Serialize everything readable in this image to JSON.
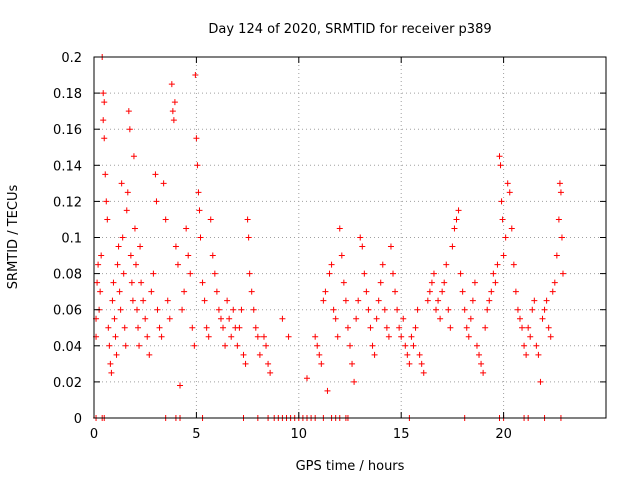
{
  "chart_data": {
    "type": "scatter",
    "title": "Day 124 of 2020, SRMTID for receiver p389",
    "xlabel": "GPS time / hours",
    "ylabel": "SRMTID / TECUs",
    "xlim": [
      0,
      25
    ],
    "ylim": [
      0,
      0.2
    ],
    "xticks": [
      0,
      5,
      10,
      15,
      20
    ],
    "yticks": [
      0,
      0.02,
      0.04,
      0.06,
      0.08,
      0.1,
      0.12,
      0.14,
      0.16,
      0.18,
      0.2
    ],
    "xtick_labels": [
      "0",
      "5",
      "10",
      "15",
      "20"
    ],
    "ytick_labels": [
      "0",
      "0.02",
      "0.04",
      "0.06",
      "0.08",
      "0.1",
      "0.12",
      "0.14",
      "0.16",
      "0.18",
      "0.2"
    ],
    "grid": true,
    "marker": "+",
    "color": "#ff0000",
    "series": [
      {
        "name": "SRMTID",
        "points": [
          [
            0.1,
            0.045
          ],
          [
            0.1,
            0.055
          ],
          [
            0.15,
            0.075
          ],
          [
            0.2,
            0.085
          ],
          [
            0.25,
            0.06
          ],
          [
            0.3,
            0.07
          ],
          [
            0.35,
            0.09
          ],
          [
            0.4,
            0.2
          ],
          [
            0.45,
            0.18
          ],
          [
            0.45,
            0.165
          ],
          [
            0.5,
            0.155
          ],
          [
            0.5,
            0.175
          ],
          [
            0.55,
            0.135
          ],
          [
            0.6,
            0.12
          ],
          [
            0.65,
            0.11
          ],
          [
            0.7,
            0.05
          ],
          [
            0.75,
            0.04
          ],
          [
            0.8,
            0.03
          ],
          [
            0.85,
            0.025
          ],
          [
            0.9,
            0.065
          ],
          [
            0.95,
            0.075
          ],
          [
            1.0,
            0.055
          ],
          [
            1.05,
            0.045
          ],
          [
            1.1,
            0.035
          ],
          [
            1.15,
            0.085
          ],
          [
            1.2,
            0.095
          ],
          [
            1.25,
            0.07
          ],
          [
            1.3,
            0.06
          ],
          [
            1.35,
            0.13
          ],
          [
            1.4,
            0.1
          ],
          [
            1.45,
            0.08
          ],
          [
            1.5,
            0.05
          ],
          [
            1.55,
            0.04
          ],
          [
            1.6,
            0.115
          ],
          [
            1.65,
            0.125
          ],
          [
            1.7,
            0.17
          ],
          [
            1.75,
            0.16
          ],
          [
            1.8,
            0.09
          ],
          [
            1.85,
            0.075
          ],
          [
            1.9,
            0.065
          ],
          [
            1.95,
            0.145
          ],
          [
            2.0,
            0.105
          ],
          [
            2.05,
            0.085
          ],
          [
            2.1,
            0.06
          ],
          [
            2.15,
            0.05
          ],
          [
            2.2,
            0.04
          ],
          [
            2.25,
            0.095
          ],
          [
            2.3,
            0.075
          ],
          [
            2.4,
            0.065
          ],
          [
            2.5,
            0.055
          ],
          [
            2.6,
            0.045
          ],
          [
            2.7,
            0.035
          ],
          [
            2.8,
            0.07
          ],
          [
            2.9,
            0.08
          ],
          [
            3.0,
            0.135
          ],
          [
            3.05,
            0.12
          ],
          [
            3.1,
            0.06
          ],
          [
            3.2,
            0.05
          ],
          [
            3.3,
            0.045
          ],
          [
            3.4,
            0.13
          ],
          [
            3.5,
            0.11
          ],
          [
            3.6,
            0.065
          ],
          [
            3.7,
            0.055
          ],
          [
            3.8,
            0.185
          ],
          [
            3.85,
            0.17
          ],
          [
            3.9,
            0.165
          ],
          [
            3.95,
            0.175
          ],
          [
            4.0,
            0.095
          ],
          [
            4.1,
            0.085
          ],
          [
            4.2,
            0.018
          ],
          [
            4.3,
            0.06
          ],
          [
            4.4,
            0.07
          ],
          [
            4.5,
            0.105
          ],
          [
            4.6,
            0.09
          ],
          [
            4.7,
            0.08
          ],
          [
            4.8,
            0.05
          ],
          [
            4.9,
            0.04
          ],
          [
            4.95,
            0.19
          ],
          [
            5.0,
            0.155
          ],
          [
            5.05,
            0.14
          ],
          [
            5.1,
            0.125
          ],
          [
            5.15,
            0.115
          ],
          [
            5.2,
            0.1
          ],
          [
            5.3,
            0.075
          ],
          [
            5.4,
            0.065
          ],
          [
            5.5,
            0.05
          ],
          [
            5.6,
            0.045
          ],
          [
            5.7,
            0.11
          ],
          [
            5.8,
            0.09
          ],
          [
            5.9,
            0.08
          ],
          [
            6.0,
            0.07
          ],
          [
            6.1,
            0.06
          ],
          [
            6.2,
            0.055
          ],
          [
            6.3,
            0.05
          ],
          [
            6.4,
            0.04
          ],
          [
            6.5,
            0.065
          ],
          [
            6.6,
            0.055
          ],
          [
            6.7,
            0.045
          ],
          [
            6.8,
            0.06
          ],
          [
            6.9,
            0.05
          ],
          [
            7.0,
            0.04
          ],
          [
            7.1,
            0.05
          ],
          [
            7.2,
            0.06
          ],
          [
            7.3,
            0.035
          ],
          [
            7.4,
            0.03
          ],
          [
            7.5,
            0.11
          ],
          [
            7.55,
            0.1
          ],
          [
            7.6,
            0.08
          ],
          [
            7.7,
            0.07
          ],
          [
            7.8,
            0.06
          ],
          [
            7.9,
            0.05
          ],
          [
            8.0,
            0.045
          ],
          [
            8.1,
            0.035
          ],
          [
            8.3,
            0.045
          ],
          [
            8.4,
            0.04
          ],
          [
            8.5,
            0.03
          ],
          [
            8.6,
            0.025
          ],
          [
            9.2,
            0.055
          ],
          [
            9.5,
            0.045
          ],
          [
            10.4,
            0.022
          ],
          [
            10.8,
            0.045
          ],
          [
            10.9,
            0.04
          ],
          [
            11.0,
            0.035
          ],
          [
            11.1,
            0.03
          ],
          [
            11.2,
            0.065
          ],
          [
            11.3,
            0.07
          ],
          [
            11.4,
            0.015
          ],
          [
            11.5,
            0.08
          ],
          [
            11.6,
            0.085
          ],
          [
            11.7,
            0.06
          ],
          [
            11.8,
            0.055
          ],
          [
            11.9,
            0.045
          ],
          [
            12.0,
            0.105
          ],
          [
            12.1,
            0.09
          ],
          [
            12.2,
            0.075
          ],
          [
            12.3,
            0.065
          ],
          [
            12.4,
            0.05
          ],
          [
            12.5,
            0.04
          ],
          [
            12.6,
            0.03
          ],
          [
            12.7,
            0.02
          ],
          [
            12.8,
            0.055
          ],
          [
            12.9,
            0.065
          ],
          [
            13.0,
            0.1
          ],
          [
            13.1,
            0.095
          ],
          [
            13.2,
            0.08
          ],
          [
            13.3,
            0.07
          ],
          [
            13.4,
            0.06
          ],
          [
            13.5,
            0.05
          ],
          [
            13.6,
            0.04
          ],
          [
            13.7,
            0.035
          ],
          [
            13.8,
            0.055
          ],
          [
            13.9,
            0.065
          ],
          [
            14.0,
            0.075
          ],
          [
            14.1,
            0.085
          ],
          [
            14.2,
            0.06
          ],
          [
            14.3,
            0.05
          ],
          [
            14.4,
            0.045
          ],
          [
            14.5,
            0.095
          ],
          [
            14.6,
            0.08
          ],
          [
            14.7,
            0.07
          ],
          [
            14.8,
            0.06
          ],
          [
            14.9,
            0.05
          ],
          [
            15.0,
            0.045
          ],
          [
            15.1,
            0.055
          ],
          [
            15.2,
            0.04
          ],
          [
            15.3,
            0.035
          ],
          [
            15.4,
            0.03
          ],
          [
            15.5,
            0.045
          ],
          [
            15.6,
            0.04
          ],
          [
            15.7,
            0.05
          ],
          [
            15.8,
            0.06
          ],
          [
            15.9,
            0.035
          ],
          [
            16.0,
            0.03
          ],
          [
            16.1,
            0.025
          ],
          [
            16.3,
            0.065
          ],
          [
            16.4,
            0.07
          ],
          [
            16.5,
            0.075
          ],
          [
            16.6,
            0.08
          ],
          [
            16.7,
            0.06
          ],
          [
            16.8,
            0.065
          ],
          [
            16.9,
            0.055
          ],
          [
            17.0,
            0.07
          ],
          [
            17.1,
            0.075
          ],
          [
            17.2,
            0.085
          ],
          [
            17.3,
            0.06
          ],
          [
            17.4,
            0.05
          ],
          [
            17.5,
            0.095
          ],
          [
            17.6,
            0.105
          ],
          [
            17.7,
            0.11
          ],
          [
            17.8,
            0.115
          ],
          [
            17.9,
            0.08
          ],
          [
            18.0,
            0.07
          ],
          [
            18.1,
            0.06
          ],
          [
            18.2,
            0.05
          ],
          [
            18.3,
            0.045
          ],
          [
            18.4,
            0.055
          ],
          [
            18.5,
            0.065
          ],
          [
            18.6,
            0.075
          ],
          [
            18.7,
            0.04
          ],
          [
            18.8,
            0.035
          ],
          [
            18.9,
            0.03
          ],
          [
            19.0,
            0.025
          ],
          [
            19.1,
            0.05
          ],
          [
            19.2,
            0.06
          ],
          [
            19.3,
            0.065
          ],
          [
            19.4,
            0.07
          ],
          [
            19.5,
            0.08
          ],
          [
            19.6,
            0.075
          ],
          [
            19.7,
            0.085
          ],
          [
            19.8,
            0.145
          ],
          [
            19.85,
            0.14
          ],
          [
            19.9,
            0.12
          ],
          [
            19.95,
            0.11
          ],
          [
            20.0,
            0.09
          ],
          [
            20.1,
            0.1
          ],
          [
            20.2,
            0.13
          ],
          [
            20.3,
            0.125
          ],
          [
            20.4,
            0.105
          ],
          [
            20.5,
            0.085
          ],
          [
            20.6,
            0.07
          ],
          [
            20.7,
            0.06
          ],
          [
            20.8,
            0.055
          ],
          [
            20.9,
            0.05
          ],
          [
            21.0,
            0.04
          ],
          [
            21.1,
            0.035
          ],
          [
            21.2,
            0.05
          ],
          [
            21.3,
            0.045
          ],
          [
            21.4,
            0.06
          ],
          [
            21.5,
            0.065
          ],
          [
            21.6,
            0.04
          ],
          [
            21.7,
            0.035
          ],
          [
            21.8,
            0.02
          ],
          [
            21.9,
            0.055
          ],
          [
            22.0,
            0.06
          ],
          [
            22.1,
            0.065
          ],
          [
            22.2,
            0.05
          ],
          [
            22.3,
            0.045
          ],
          [
            22.4,
            0.07
          ],
          [
            22.5,
            0.075
          ],
          [
            22.6,
            0.09
          ],
          [
            22.7,
            0.11
          ],
          [
            22.75,
            0.13
          ],
          [
            22.8,
            0.125
          ],
          [
            22.85,
            0.1
          ],
          [
            22.9,
            0.08
          ]
        ]
      },
      {
        "name": "zero-baseline",
        "points": [
          [
            0.1,
            0
          ],
          [
            0.4,
            0
          ],
          [
            0.5,
            0
          ],
          [
            3.5,
            0
          ],
          [
            4.0,
            0
          ],
          [
            4.2,
            0
          ],
          [
            5.3,
            0
          ],
          [
            7.3,
            0
          ],
          [
            8.0,
            0
          ],
          [
            8.5,
            0
          ],
          [
            8.8,
            0
          ],
          [
            9.0,
            0
          ],
          [
            9.2,
            0
          ],
          [
            9.4,
            0
          ],
          [
            9.6,
            0
          ],
          [
            9.8,
            0
          ],
          [
            10.0,
            0
          ],
          [
            10.2,
            0
          ],
          [
            10.4,
            0
          ],
          [
            10.6,
            0
          ],
          [
            10.8,
            0
          ],
          [
            11.2,
            0
          ],
          [
            11.6,
            0
          ],
          [
            11.8,
            0
          ],
          [
            12.0,
            0
          ],
          [
            12.3,
            0
          ],
          [
            12.4,
            0
          ],
          [
            15.4,
            0
          ],
          [
            18.1,
            0
          ],
          [
            19.8,
            0
          ],
          [
            20.0,
            0
          ],
          [
            21.0,
            0
          ],
          [
            21.2,
            0
          ],
          [
            22.0,
            0
          ],
          [
            22.8,
            0
          ]
        ]
      }
    ]
  }
}
